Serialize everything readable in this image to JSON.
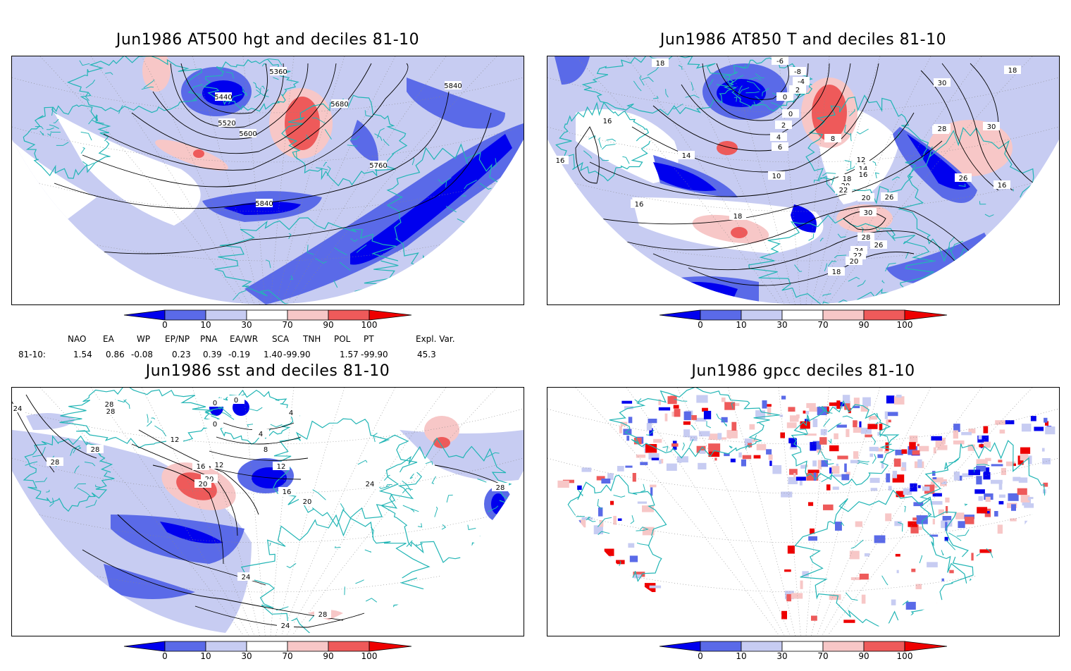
{
  "panels": [
    {
      "title": "Jun1986 AT500 hgt and deciles 81-10",
      "contour_labels": [
        "5360",
        "5440",
        "5520",
        "5600",
        "5680",
        "5760",
        "5840",
        "5840"
      ]
    },
    {
      "title": "Jun1986 AT850 T and deciles 81-10",
      "contour_labels": [
        "18",
        "18",
        "16",
        "16",
        "14",
        "10",
        "6",
        "4",
        "2",
        "0",
        "-6",
        "-8",
        "-4",
        "2",
        "0",
        "8",
        "12",
        "14",
        "16",
        "18",
        "20",
        "22",
        "26",
        "28",
        "30",
        "28",
        "26",
        "24",
        "22",
        "20",
        "18",
        "30",
        "28",
        "26",
        "16",
        "18",
        "20",
        "16",
        "30"
      ]
    },
    {
      "title": "Jun1986 sst and deciles 81-10",
      "contour_labels": [
        "24",
        "28",
        "28",
        "28",
        "12",
        "0",
        "0",
        "0",
        "4",
        "4",
        "8",
        "12",
        "12",
        "16",
        "16",
        "20",
        "20",
        "24",
        "24",
        "28",
        "28",
        "20",
        "28",
        "24"
      ]
    },
    {
      "title": "Jun1986 gpcc deciles 81-10",
      "contour_labels": []
    }
  ],
  "legend": {
    "ticks": [
      "0",
      "10",
      "30",
      "70",
      "90",
      "100"
    ],
    "colors": [
      "#0000ee",
      "#5a6ae8",
      "#c7ccf2",
      "#ffffff",
      "#f7c7c7",
      "#ee5a5a",
      "#ee0000"
    ]
  },
  "indices": {
    "row_label": "81-10:",
    "items": [
      {
        "name": "NAO",
        "value": "1.54"
      },
      {
        "name": "EA",
        "value": "0.86"
      },
      {
        "name": "WP",
        "value": "-0.08"
      },
      {
        "name": "EP/NP",
        "value": "0.23"
      },
      {
        "name": "PNA",
        "value": "0.39"
      },
      {
        "name": "EA/WR",
        "value": "-0.19"
      },
      {
        "name": "SCA",
        "value": "1.40"
      },
      {
        "name": "TNH",
        "value": "-99.90"
      },
      {
        "name": "POL",
        "value": "1.57"
      },
      {
        "name": "PT",
        "value": "-99.90"
      },
      {
        "name": "Expl. Var.",
        "value": "45.3"
      }
    ]
  },
  "colors": {
    "coast": "#22b5b5",
    "contour": "#000000",
    "grid": "#888888"
  }
}
